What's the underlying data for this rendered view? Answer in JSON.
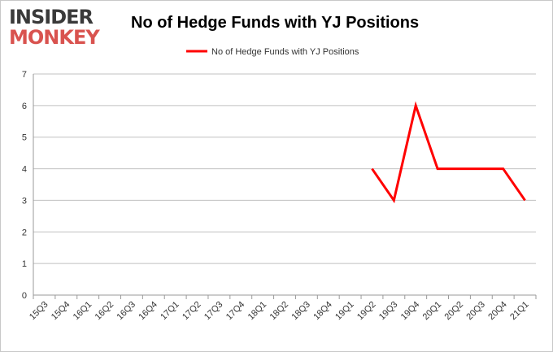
{
  "logo": {
    "line1": "INSIDER",
    "line2": "MONKEY"
  },
  "colors": {
    "series": "#ff0000",
    "grid": "#c0c0c0",
    "brand_red": "#d9534f"
  },
  "chart_data": {
    "type": "line",
    "title": "No of Hedge Funds with YJ Positions",
    "legend_position": "top-center",
    "grid": true,
    "ylim": [
      0,
      7
    ],
    "yticks": [
      0,
      1,
      2,
      3,
      4,
      5,
      6,
      7
    ],
    "categories": [
      "15Q3",
      "15Q4",
      "16Q1",
      "16Q2",
      "16Q3",
      "16Q4",
      "17Q1",
      "17Q2",
      "17Q3",
      "17Q4",
      "18Q1",
      "18Q2",
      "18Q3",
      "18Q4",
      "19Q1",
      "19Q2",
      "19Q3",
      "19Q4",
      "20Q1",
      "20Q2",
      "20Q3",
      "20Q4",
      "21Q1"
    ],
    "series": [
      {
        "name": "No of Hedge Funds with YJ Positions",
        "values": [
          null,
          null,
          null,
          null,
          null,
          null,
          null,
          null,
          null,
          null,
          null,
          null,
          null,
          null,
          null,
          4,
          3,
          6,
          4,
          4,
          4,
          4,
          3
        ]
      }
    ]
  }
}
